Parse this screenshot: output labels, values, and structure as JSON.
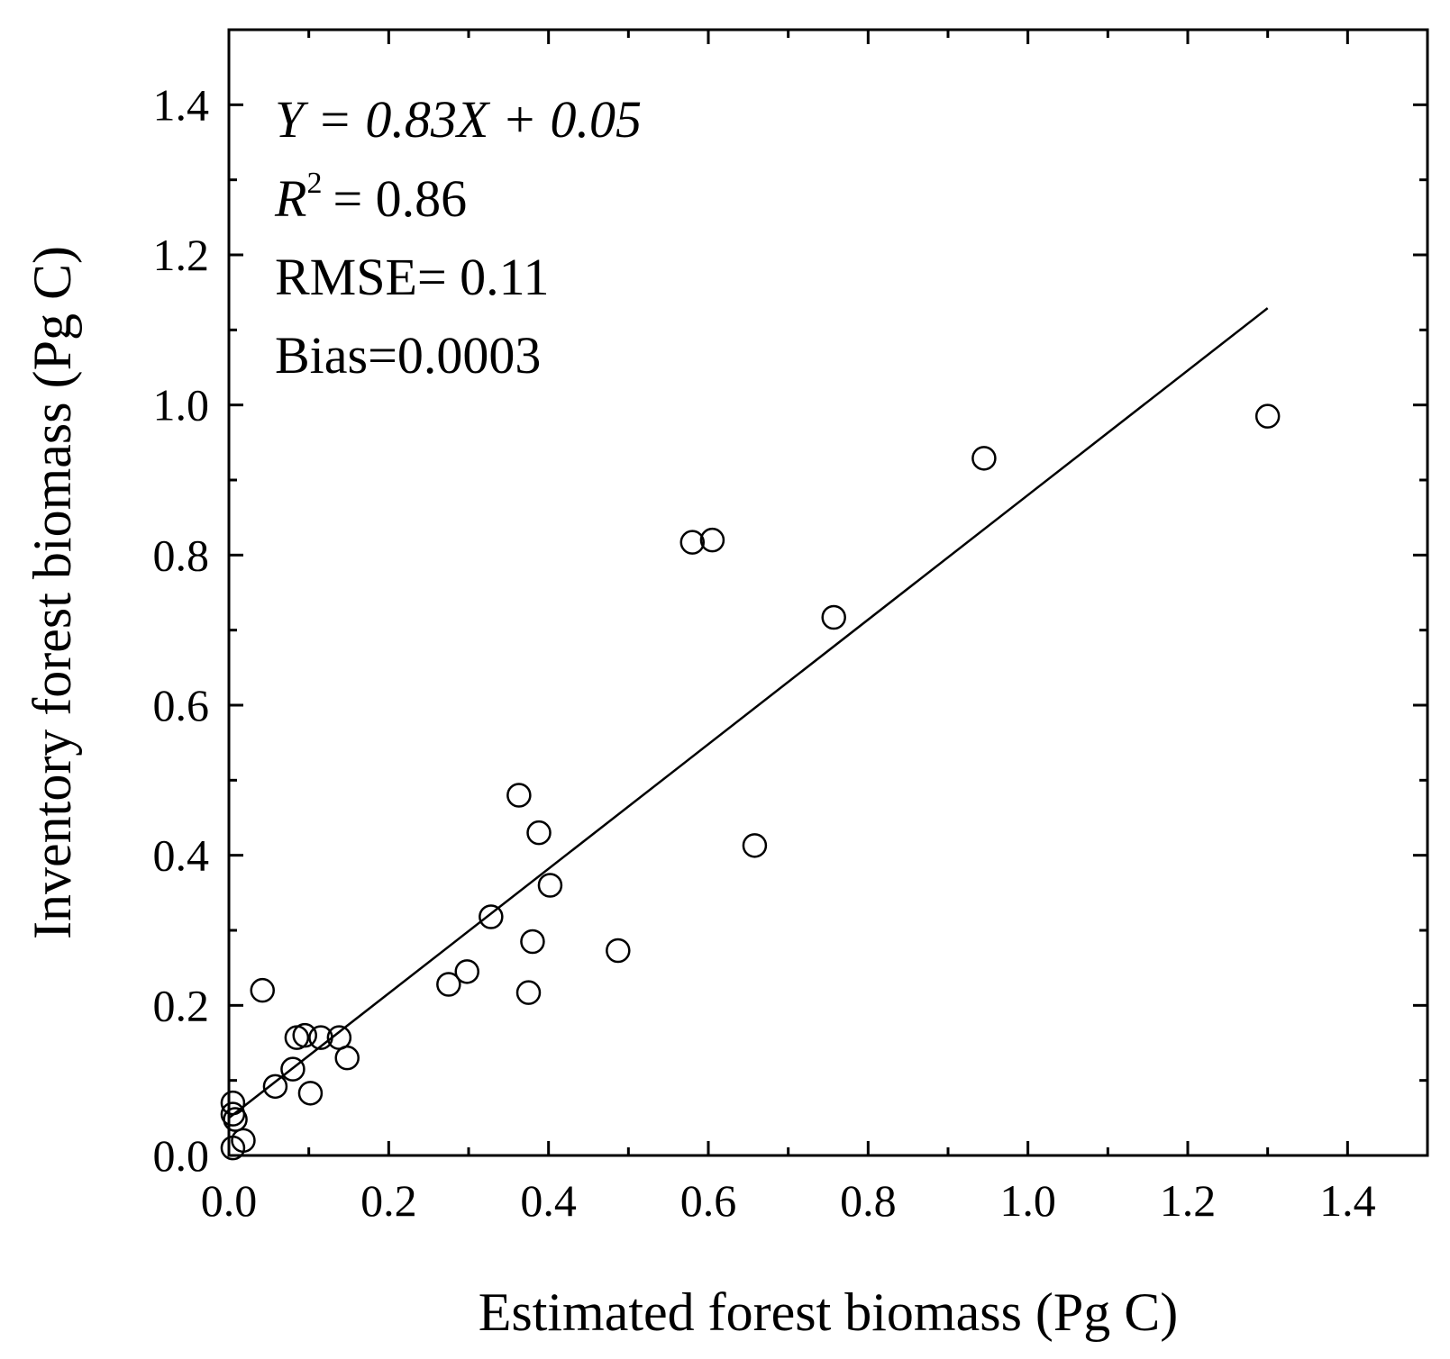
{
  "chart_data": {
    "type": "scatter",
    "xlabel": "Estimated forest biomass (Pg C)",
    "ylabel": "Inventory forest biomass (Pg C)",
    "xlim": [
      0.0,
      1.5
    ],
    "ylim": [
      0.0,
      1.5
    ],
    "xticks": [
      "0.0",
      "0.2",
      "0.4",
      "0.6",
      "0.8",
      "1.0",
      "1.2",
      "1.4"
    ],
    "yticks": [
      "0.0",
      "0.2",
      "0.4",
      "0.6",
      "0.8",
      "1.0",
      "1.2",
      "1.4"
    ],
    "grid": false,
    "annotations": {
      "equation": "Y = 0.83X + 0.05",
      "r2_label": "R",
      "r2_exponent": "2",
      "r2_value": "= 0.86",
      "rmse": "RMSE= 0.11",
      "bias": "Bias=0.0003"
    },
    "fit_line": {
      "slope": 0.83,
      "intercept": 0.05,
      "x_range": [
        0.0,
        1.3
      ]
    },
    "points": [
      {
        "x": 0.005,
        "y": 0.07
      },
      {
        "x": 0.005,
        "y": 0.055
      },
      {
        "x": 0.008,
        "y": 0.048
      },
      {
        "x": 0.005,
        "y": 0.01
      },
      {
        "x": 0.018,
        "y": 0.02
      },
      {
        "x": 0.042,
        "y": 0.22
      },
      {
        "x": 0.058,
        "y": 0.092
      },
      {
        "x": 0.08,
        "y": 0.115
      },
      {
        "x": 0.085,
        "y": 0.157
      },
      {
        "x": 0.095,
        "y": 0.16
      },
      {
        "x": 0.102,
        "y": 0.083
      },
      {
        "x": 0.115,
        "y": 0.157
      },
      {
        "x": 0.138,
        "y": 0.157
      },
      {
        "x": 0.148,
        "y": 0.13
      },
      {
        "x": 0.275,
        "y": 0.228
      },
      {
        "x": 0.298,
        "y": 0.245
      },
      {
        "x": 0.328,
        "y": 0.318
      },
      {
        "x": 0.363,
        "y": 0.48
      },
      {
        "x": 0.375,
        "y": 0.217
      },
      {
        "x": 0.38,
        "y": 0.285
      },
      {
        "x": 0.388,
        "y": 0.43
      },
      {
        "x": 0.402,
        "y": 0.36
      },
      {
        "x": 0.487,
        "y": 0.273
      },
      {
        "x": 0.58,
        "y": 0.817
      },
      {
        "x": 0.605,
        "y": 0.82
      },
      {
        "x": 0.658,
        "y": 0.413
      },
      {
        "x": 0.757,
        "y": 0.717
      },
      {
        "x": 0.945,
        "y": 0.929
      },
      {
        "x": 1.3,
        "y": 0.985
      }
    ]
  }
}
